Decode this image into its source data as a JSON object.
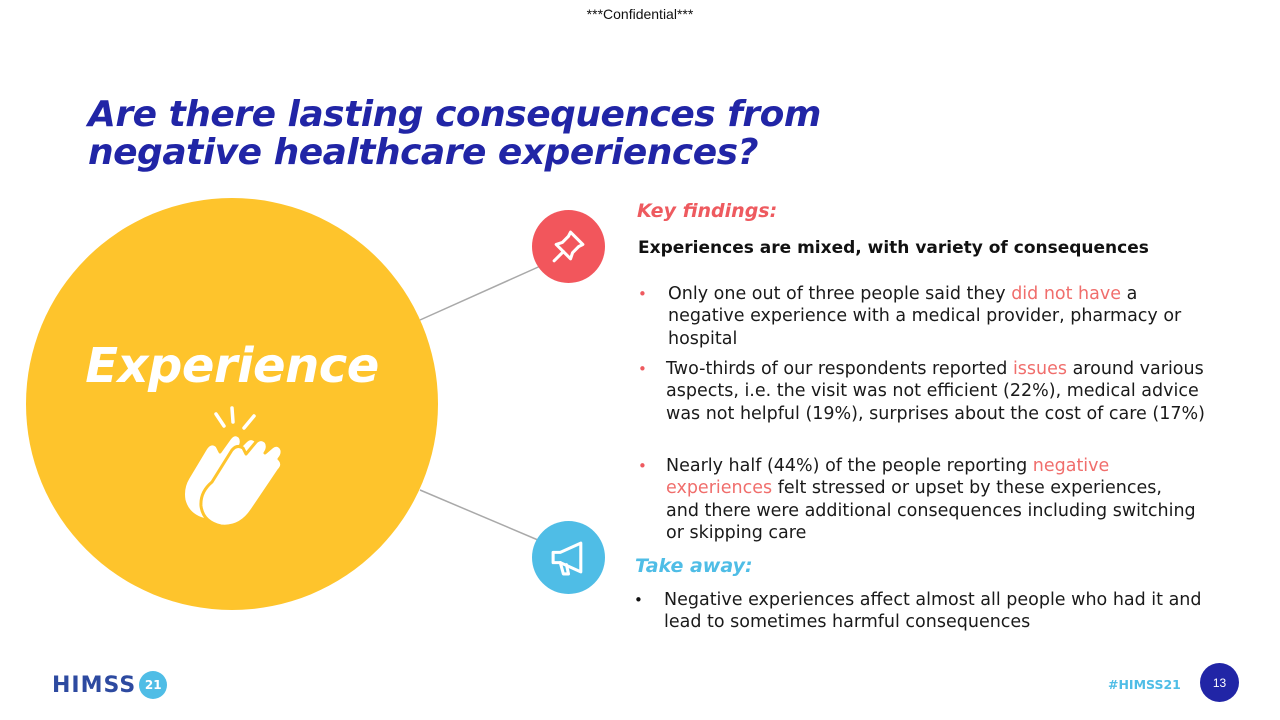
{
  "header": {
    "confidential": "***Confidential***"
  },
  "title": "Are there lasting consequences from negative healthcare experiences?",
  "circle": {
    "label": "Experience",
    "icon": "clapping-hands-icon",
    "color": "#fec42c"
  },
  "icons": {
    "key_findings": "pin-icon",
    "takeaway": "megaphone-icon"
  },
  "key_findings": {
    "heading": "Key findings:",
    "summary": "Experiences are mixed, with variety of consequences",
    "bullets": [
      {
        "before": "Only one out of three people said they ",
        "highlight": "did not have ",
        "after": " a negative experience with a medical provider, pharmacy or hospital"
      },
      {
        "before": "Two-thirds of our respondents reported ",
        "highlight": "issues",
        "after": " around various aspects, i.e. the visit was not efficient (22%), medical advice was not helpful (19%), surprises about the cost of care (17%)"
      },
      {
        "before": "Nearly half (44%) of the people reporting ",
        "highlight": "negative experiences",
        "after": " felt stressed or upset by these experiences, and there were additional consequences including switching or skipping care"
      }
    ]
  },
  "takeaway": {
    "heading": "Take away:",
    "bullets": [
      "Negative experiences affect almost all people who had it and lead to sometimes harmful consequences"
    ]
  },
  "footer": {
    "logo_text": "HIMSS",
    "logo_badge": "21",
    "hashtag": "#HIMSS21",
    "page_number": "13"
  },
  "colors": {
    "title": "#2125a6",
    "accent_red": "#ee5a5f",
    "accent_blue": "#4fbde6",
    "highlight": "#f06e6c"
  }
}
